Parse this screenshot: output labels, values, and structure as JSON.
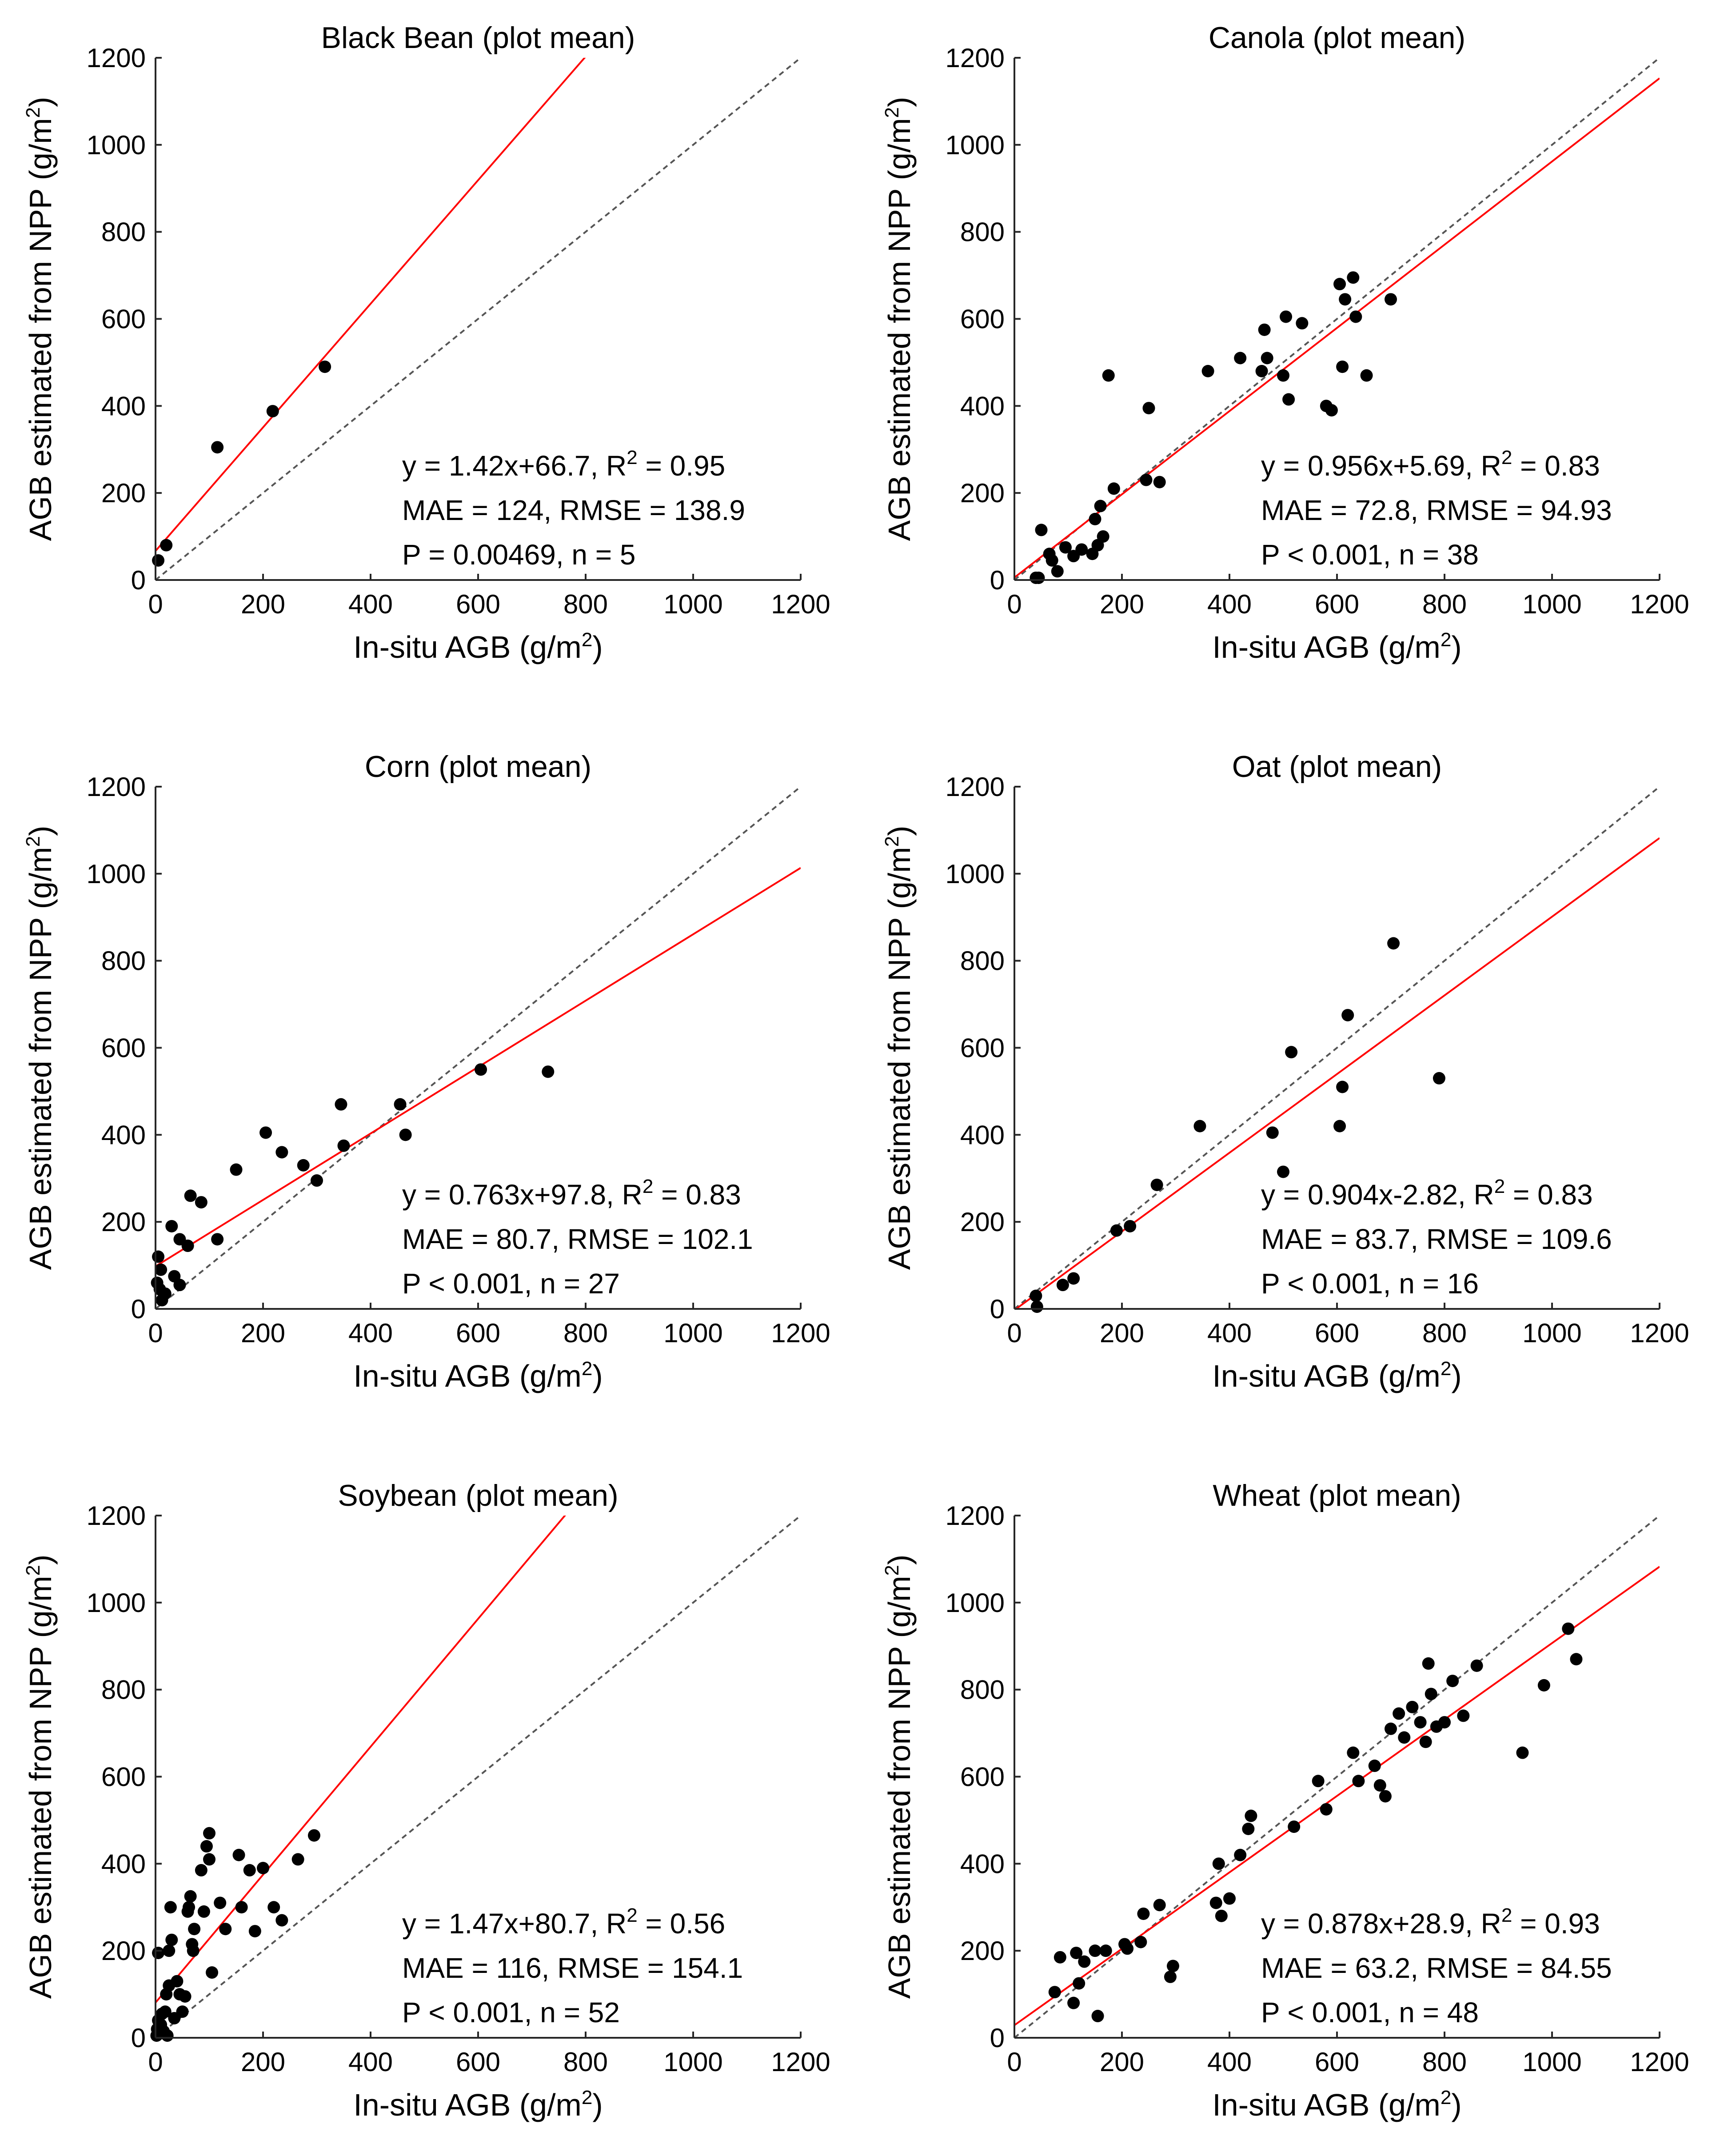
{
  "colors": {
    "fit_line": "#ff0000",
    "identity_line": "#555555",
    "points": "#000000",
    "axes": "#262626"
  },
  "chart_data": [
    {
      "type": "scatter",
      "title": "Black Bean (plot mean)",
      "xlabel": "In-situ AGB (g/m2)",
      "ylabel": "AGB estimated from NPP (g/m2)",
      "xlim": [
        0,
        1200
      ],
      "ylim": [
        0,
        1200
      ],
      "x_ticks": [
        0,
        200,
        400,
        600,
        800,
        1000,
        1200
      ],
      "y_ticks": [
        0,
        200,
        400,
        600,
        800,
        1000,
        1200
      ],
      "grid": false,
      "fit": {
        "slope": 1.42,
        "intercept": 66.7
      },
      "stats": {
        "equation": "y = 1.42x+66.7, R",
        "r2_value": " = 0.95",
        "error": "MAE = 124, RMSE = 138.9",
        "significance": "P = 0.00469, n = 5"
      },
      "points": [
        [
          5,
          45
        ],
        [
          20,
          80
        ],
        [
          115,
          305
        ],
        [
          218,
          388
        ],
        [
          315,
          490
        ]
      ]
    },
    {
      "type": "scatter",
      "title": "Canola (plot mean)",
      "xlabel": "In-situ AGB (g/m2)",
      "ylabel": "AGB estimated from NPP (g/m2)",
      "xlim": [
        0,
        1200
      ],
      "ylim": [
        0,
        1200
      ],
      "x_ticks": [
        0,
        200,
        400,
        600,
        800,
        1000,
        1200
      ],
      "y_ticks": [
        0,
        200,
        400,
        600,
        800,
        1000,
        1200
      ],
      "grid": false,
      "fit": {
        "slope": 0.956,
        "intercept": 5.69
      },
      "stats": {
        "equation": "y = 0.956x+5.69, R",
        "r2_value": " = 0.83",
        "error": "MAE = 72.8, RMSE = 94.93",
        "significance": "P < 0.001, n = 38"
      },
      "points": [
        [
          40,
          5
        ],
        [
          45,
          5
        ],
        [
          50,
          115
        ],
        [
          65,
          60
        ],
        [
          70,
          45
        ],
        [
          80,
          20
        ],
        [
          95,
          75
        ],
        [
          110,
          55
        ],
        [
          125,
          70
        ],
        [
          145,
          60
        ],
        [
          150,
          140
        ],
        [
          155,
          80
        ],
        [
          160,
          170
        ],
        [
          165,
          100
        ],
        [
          175,
          470
        ],
        [
          185,
          210
        ],
        [
          245,
          230
        ],
        [
          250,
          395
        ],
        [
          270,
          225
        ],
        [
          360,
          480
        ],
        [
          420,
          510
        ],
        [
          460,
          480
        ],
        [
          465,
          575
        ],
        [
          470,
          510
        ],
        [
          500,
          470
        ],
        [
          505,
          605
        ],
        [
          510,
          415
        ],
        [
          535,
          590
        ],
        [
          580,
          400
        ],
        [
          590,
          390
        ],
        [
          605,
          680
        ],
        [
          610,
          490
        ],
        [
          615,
          645
        ],
        [
          630,
          695
        ],
        [
          635,
          605
        ],
        [
          655,
          470
        ],
        [
          700,
          645
        ]
      ]
    },
    {
      "type": "scatter",
      "title": "Corn (plot mean)",
      "xlabel": "In-situ AGB (g/m2)",
      "ylabel": "AGB estimated from NPP (g/m2)",
      "xlim": [
        0,
        1200
      ],
      "ylim": [
        0,
        1200
      ],
      "x_ticks": [
        0,
        200,
        400,
        600,
        800,
        1000,
        1200
      ],
      "y_ticks": [
        0,
        200,
        400,
        600,
        800,
        1000,
        1200
      ],
      "grid": false,
      "fit": {
        "slope": 0.763,
        "intercept": 97.8
      },
      "stats": {
        "equation": "y = 0.763x+97.8, R",
        "r2_value": " = 0.83",
        "error": "MAE = 80.7, RMSE = 102.1",
        "significance": "P < 0.001, n = 27"
      },
      "points": [
        [
          3,
          60
        ],
        [
          5,
          120
        ],
        [
          8,
          45
        ],
        [
          10,
          90
        ],
        [
          12,
          20
        ],
        [
          18,
          35
        ],
        [
          30,
          190
        ],
        [
          35,
          75
        ],
        [
          45,
          160
        ],
        [
          45,
          55
        ],
        [
          60,
          145
        ],
        [
          65,
          260
        ],
        [
          85,
          245
        ],
        [
          115,
          160
        ],
        [
          150,
          320
        ],
        [
          205,
          405
        ],
        [
          235,
          360
        ],
        [
          275,
          330
        ],
        [
          300,
          295
        ],
        [
          345,
          470
        ],
        [
          350,
          375
        ],
        [
          455,
          470
        ],
        [
          465,
          400
        ],
        [
          605,
          550
        ],
        [
          730,
          545
        ]
      ]
    },
    {
      "type": "scatter",
      "title": "Oat (plot mean)",
      "xlabel": "In-situ AGB (g/m2)",
      "ylabel": "AGB estimated from NPP (g/m2)",
      "xlim": [
        0,
        1200
      ],
      "ylim": [
        0,
        1200
      ],
      "x_ticks": [
        0,
        200,
        400,
        600,
        800,
        1000,
        1200
      ],
      "y_ticks": [
        0,
        200,
        400,
        600,
        800,
        1000,
        1200
      ],
      "grid": false,
      "fit": {
        "slope": 0.904,
        "intercept": -2.82
      },
      "stats": {
        "equation": "y = 0.904x-2.82, R",
        "r2_value": " = 0.83",
        "error": "MAE = 83.7, RMSE = 109.6",
        "significance": "P < 0.001, n = 16"
      },
      "points": [
        [
          40,
          30
        ],
        [
          42,
          5
        ],
        [
          90,
          55
        ],
        [
          110,
          70
        ],
        [
          190,
          180
        ],
        [
          215,
          190
        ],
        [
          265,
          285
        ],
        [
          345,
          420
        ],
        [
          480,
          405
        ],
        [
          500,
          315
        ],
        [
          515,
          590
        ],
        [
          605,
          420
        ],
        [
          610,
          510
        ],
        [
          620,
          675
        ],
        [
          705,
          840
        ],
        [
          790,
          530
        ]
      ]
    },
    {
      "type": "scatter",
      "title": "Soybean (plot mean)",
      "xlabel": "In-situ AGB (g/m2)",
      "ylabel": "AGB estimated from NPP (g/m2)",
      "xlim": [
        0,
        1200
      ],
      "ylim": [
        0,
        1200
      ],
      "x_ticks": [
        0,
        200,
        400,
        600,
        800,
        1000,
        1200
      ],
      "y_ticks": [
        0,
        200,
        400,
        600,
        800,
        1000,
        1200
      ],
      "grid": false,
      "fit": {
        "slope": 1.47,
        "intercept": 80.7
      },
      "stats": {
        "equation": "y = 1.47x+80.7, R",
        "r2_value": " = 0.56",
        "error": "MAE = 116, RMSE = 154.1",
        "significance": "P < 0.001, n = 52"
      },
      "points": [
        [
          2,
          5
        ],
        [
          3,
          20
        ],
        [
          5,
          40
        ],
        [
          5,
          195
        ],
        [
          8,
          10
        ],
        [
          10,
          30
        ],
        [
          12,
          55
        ],
        [
          15,
          15
        ],
        [
          18,
          60
        ],
        [
          20,
          100
        ],
        [
          22,
          5
        ],
        [
          25,
          200
        ],
        [
          25,
          120
        ],
        [
          28,
          300
        ],
        [
          30,
          225
        ],
        [
          35,
          45
        ],
        [
          40,
          130
        ],
        [
          45,
          100
        ],
        [
          50,
          60
        ],
        [
          55,
          95
        ],
        [
          60,
          290
        ],
        [
          62,
          300
        ],
        [
          65,
          325
        ],
        [
          68,
          215
        ],
        [
          70,
          200
        ],
        [
          72,
          250
        ],
        [
          85,
          385
        ],
        [
          90,
          290
        ],
        [
          95,
          440
        ],
        [
          100,
          410
        ],
        [
          100,
          470
        ],
        [
          105,
          150
        ],
        [
          120,
          310
        ],
        [
          130,
          250
        ],
        [
          155,
          420
        ],
        [
          160,
          300
        ],
        [
          175,
          385
        ],
        [
          185,
          245
        ],
        [
          200,
          390
        ],
        [
          220,
          300
        ],
        [
          235,
          270
        ],
        [
          265,
          410
        ],
        [
          295,
          465
        ]
      ]
    },
    {
      "type": "scatter",
      "title": "Wheat (plot mean)",
      "xlabel": "In-situ AGB (g/m2)",
      "ylabel": "AGB estimated from NPP (g/m2)",
      "xlim": [
        0,
        1200
      ],
      "ylim": [
        0,
        1200
      ],
      "x_ticks": [
        0,
        200,
        400,
        600,
        800,
        1000,
        1200
      ],
      "y_ticks": [
        0,
        200,
        400,
        600,
        800,
        1000,
        1200
      ],
      "grid": false,
      "fit": {
        "slope": 0.878,
        "intercept": 28.9
      },
      "stats": {
        "equation": "y = 0.878x+28.9, R",
        "r2_value": " = 0.93",
        "error": "MAE = 63.2, RMSE = 84.55",
        "significance": "P < 0.001, n = 48"
      },
      "points": [
        [
          75,
          105
        ],
        [
          85,
          185
        ],
        [
          110,
          80
        ],
        [
          115,
          195
        ],
        [
          120,
          125
        ],
        [
          130,
          175
        ],
        [
          150,
          200
        ],
        [
          155,
          50
        ],
        [
          170,
          200
        ],
        [
          205,
          215
        ],
        [
          210,
          205
        ],
        [
          235,
          220
        ],
        [
          240,
          285
        ],
        [
          270,
          305
        ],
        [
          290,
          140
        ],
        [
          295,
          165
        ],
        [
          375,
          310
        ],
        [
          380,
          400
        ],
        [
          385,
          280
        ],
        [
          400,
          320
        ],
        [
          420,
          420
        ],
        [
          435,
          480
        ],
        [
          440,
          510
        ],
        [
          520,
          485
        ],
        [
          565,
          590
        ],
        [
          580,
          525
        ],
        [
          630,
          655
        ],
        [
          640,
          590
        ],
        [
          670,
          625
        ],
        [
          680,
          580
        ],
        [
          690,
          555
        ],
        [
          700,
          710
        ],
        [
          715,
          745
        ],
        [
          725,
          690
        ],
        [
          740,
          760
        ],
        [
          755,
          725
        ],
        [
          765,
          680
        ],
        [
          770,
          860
        ],
        [
          775,
          790
        ],
        [
          785,
          715
        ],
        [
          800,
          725
        ],
        [
          815,
          820
        ],
        [
          835,
          740
        ],
        [
          860,
          855
        ],
        [
          945,
          655
        ],
        [
          985,
          810
        ],
        [
          1030,
          940
        ],
        [
          1045,
          870
        ]
      ]
    }
  ]
}
